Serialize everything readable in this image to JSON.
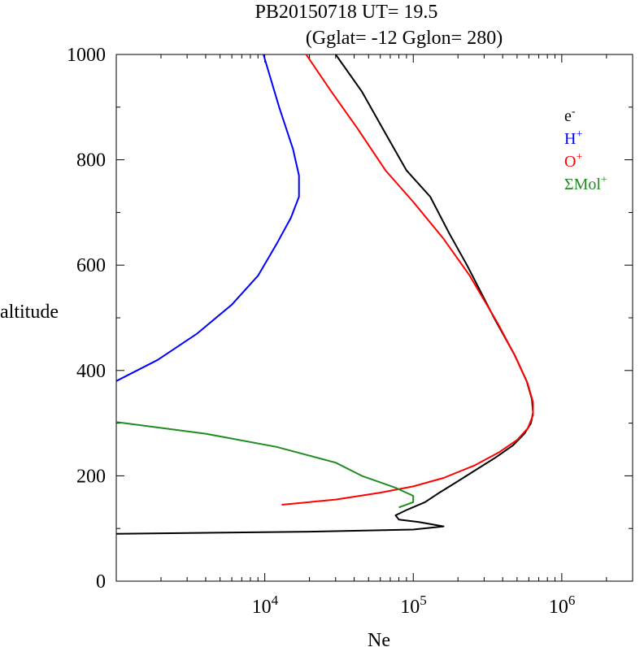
{
  "chart_data": {
    "type": "line",
    "title": "PB20150718   UT=  19.5",
    "subtitle": "(Gglat= -12   Gglon=  280)",
    "xlabel": "Ne",
    "ylabel": "altitude",
    "xscale": "log",
    "xlim": [
      1000,
      3000000
    ],
    "ylim": [
      0,
      1000
    ],
    "grid": false,
    "legend_position": "top-right",
    "x_tick_labels": [
      {
        "value": 10000,
        "base": "10",
        "exp": "4"
      },
      {
        "value": 100000,
        "base": "10",
        "exp": "5"
      },
      {
        "value": 1000000,
        "base": "10",
        "exp": "6"
      }
    ],
    "y_tick_labels": [
      {
        "value": 0,
        "label": "0"
      },
      {
        "value": 200,
        "label": "200"
      },
      {
        "value": 400,
        "label": "400"
      },
      {
        "value": 600,
        "label": "600"
      },
      {
        "value": 800,
        "label": "800"
      },
      {
        "value": 1000,
        "label": "1000"
      }
    ],
    "series": [
      {
        "name": "e-",
        "label_base": "e",
        "label_sup": "-",
        "color": "#000000",
        "points": [
          [
            1000,
            90
          ],
          [
            20000,
            94
          ],
          [
            100000,
            98
          ],
          [
            160000,
            104
          ],
          [
            110000,
            112
          ],
          [
            80000,
            117
          ],
          [
            76000,
            125
          ],
          [
            90000,
            135
          ],
          [
            120000,
            150
          ],
          [
            150000,
            168
          ],
          [
            190000,
            186
          ],
          [
            260000,
            210
          ],
          [
            360000,
            235
          ],
          [
            470000,
            258
          ],
          [
            560000,
            280
          ],
          [
            620000,
            300
          ],
          [
            640000,
            320
          ],
          [
            630000,
            345
          ],
          [
            580000,
            380
          ],
          [
            480000,
            430
          ],
          [
            350000,
            500
          ],
          [
            230000,
            600
          ],
          [
            175000,
            660
          ],
          [
            130000,
            730
          ],
          [
            90000,
            780
          ],
          [
            65000,
            850
          ],
          [
            45000,
            930
          ],
          [
            30000,
            1000
          ]
        ]
      },
      {
        "name": "H+",
        "label_base": "H",
        "label_sup": "+",
        "color": "#0000ff",
        "points": [
          [
            1000,
            380
          ],
          [
            1900,
            420
          ],
          [
            3500,
            470
          ],
          [
            6000,
            525
          ],
          [
            9000,
            580
          ],
          [
            12000,
            640
          ],
          [
            15000,
            690
          ],
          [
            17000,
            730
          ],
          [
            17000,
            770
          ],
          [
            15500,
            820
          ],
          [
            12500,
            900
          ],
          [
            9800,
            1000
          ]
        ]
      },
      {
        "name": "O+",
        "label_base": "O",
        "label_sup": "+",
        "color": "#ff0000",
        "points": [
          [
            13000,
            145
          ],
          [
            30000,
            155
          ],
          [
            60000,
            168
          ],
          [
            100000,
            180
          ],
          [
            160000,
            196
          ],
          [
            260000,
            220
          ],
          [
            380000,
            245
          ],
          [
            500000,
            268
          ],
          [
            590000,
            290
          ],
          [
            640000,
            315
          ],
          [
            640000,
            340
          ],
          [
            590000,
            375
          ],
          [
            490000,
            425
          ],
          [
            370000,
            490
          ],
          [
            240000,
            580
          ],
          [
            160000,
            650
          ],
          [
            100000,
            720
          ],
          [
            65000,
            780
          ],
          [
            42000,
            860
          ],
          [
            28000,
            930
          ],
          [
            19000,
            1000
          ]
        ]
      },
      {
        "name": "ΣMol+",
        "label_base": "ΣMol",
        "label_sup": "+",
        "color": "#228b22",
        "points": [
          [
            1000,
            302
          ],
          [
            4000,
            280
          ],
          [
            12000,
            255
          ],
          [
            30000,
            225
          ],
          [
            45000,
            200
          ],
          [
            75000,
            178
          ],
          [
            100000,
            162
          ],
          [
            100000,
            150
          ],
          [
            80000,
            140
          ]
        ]
      }
    ]
  }
}
